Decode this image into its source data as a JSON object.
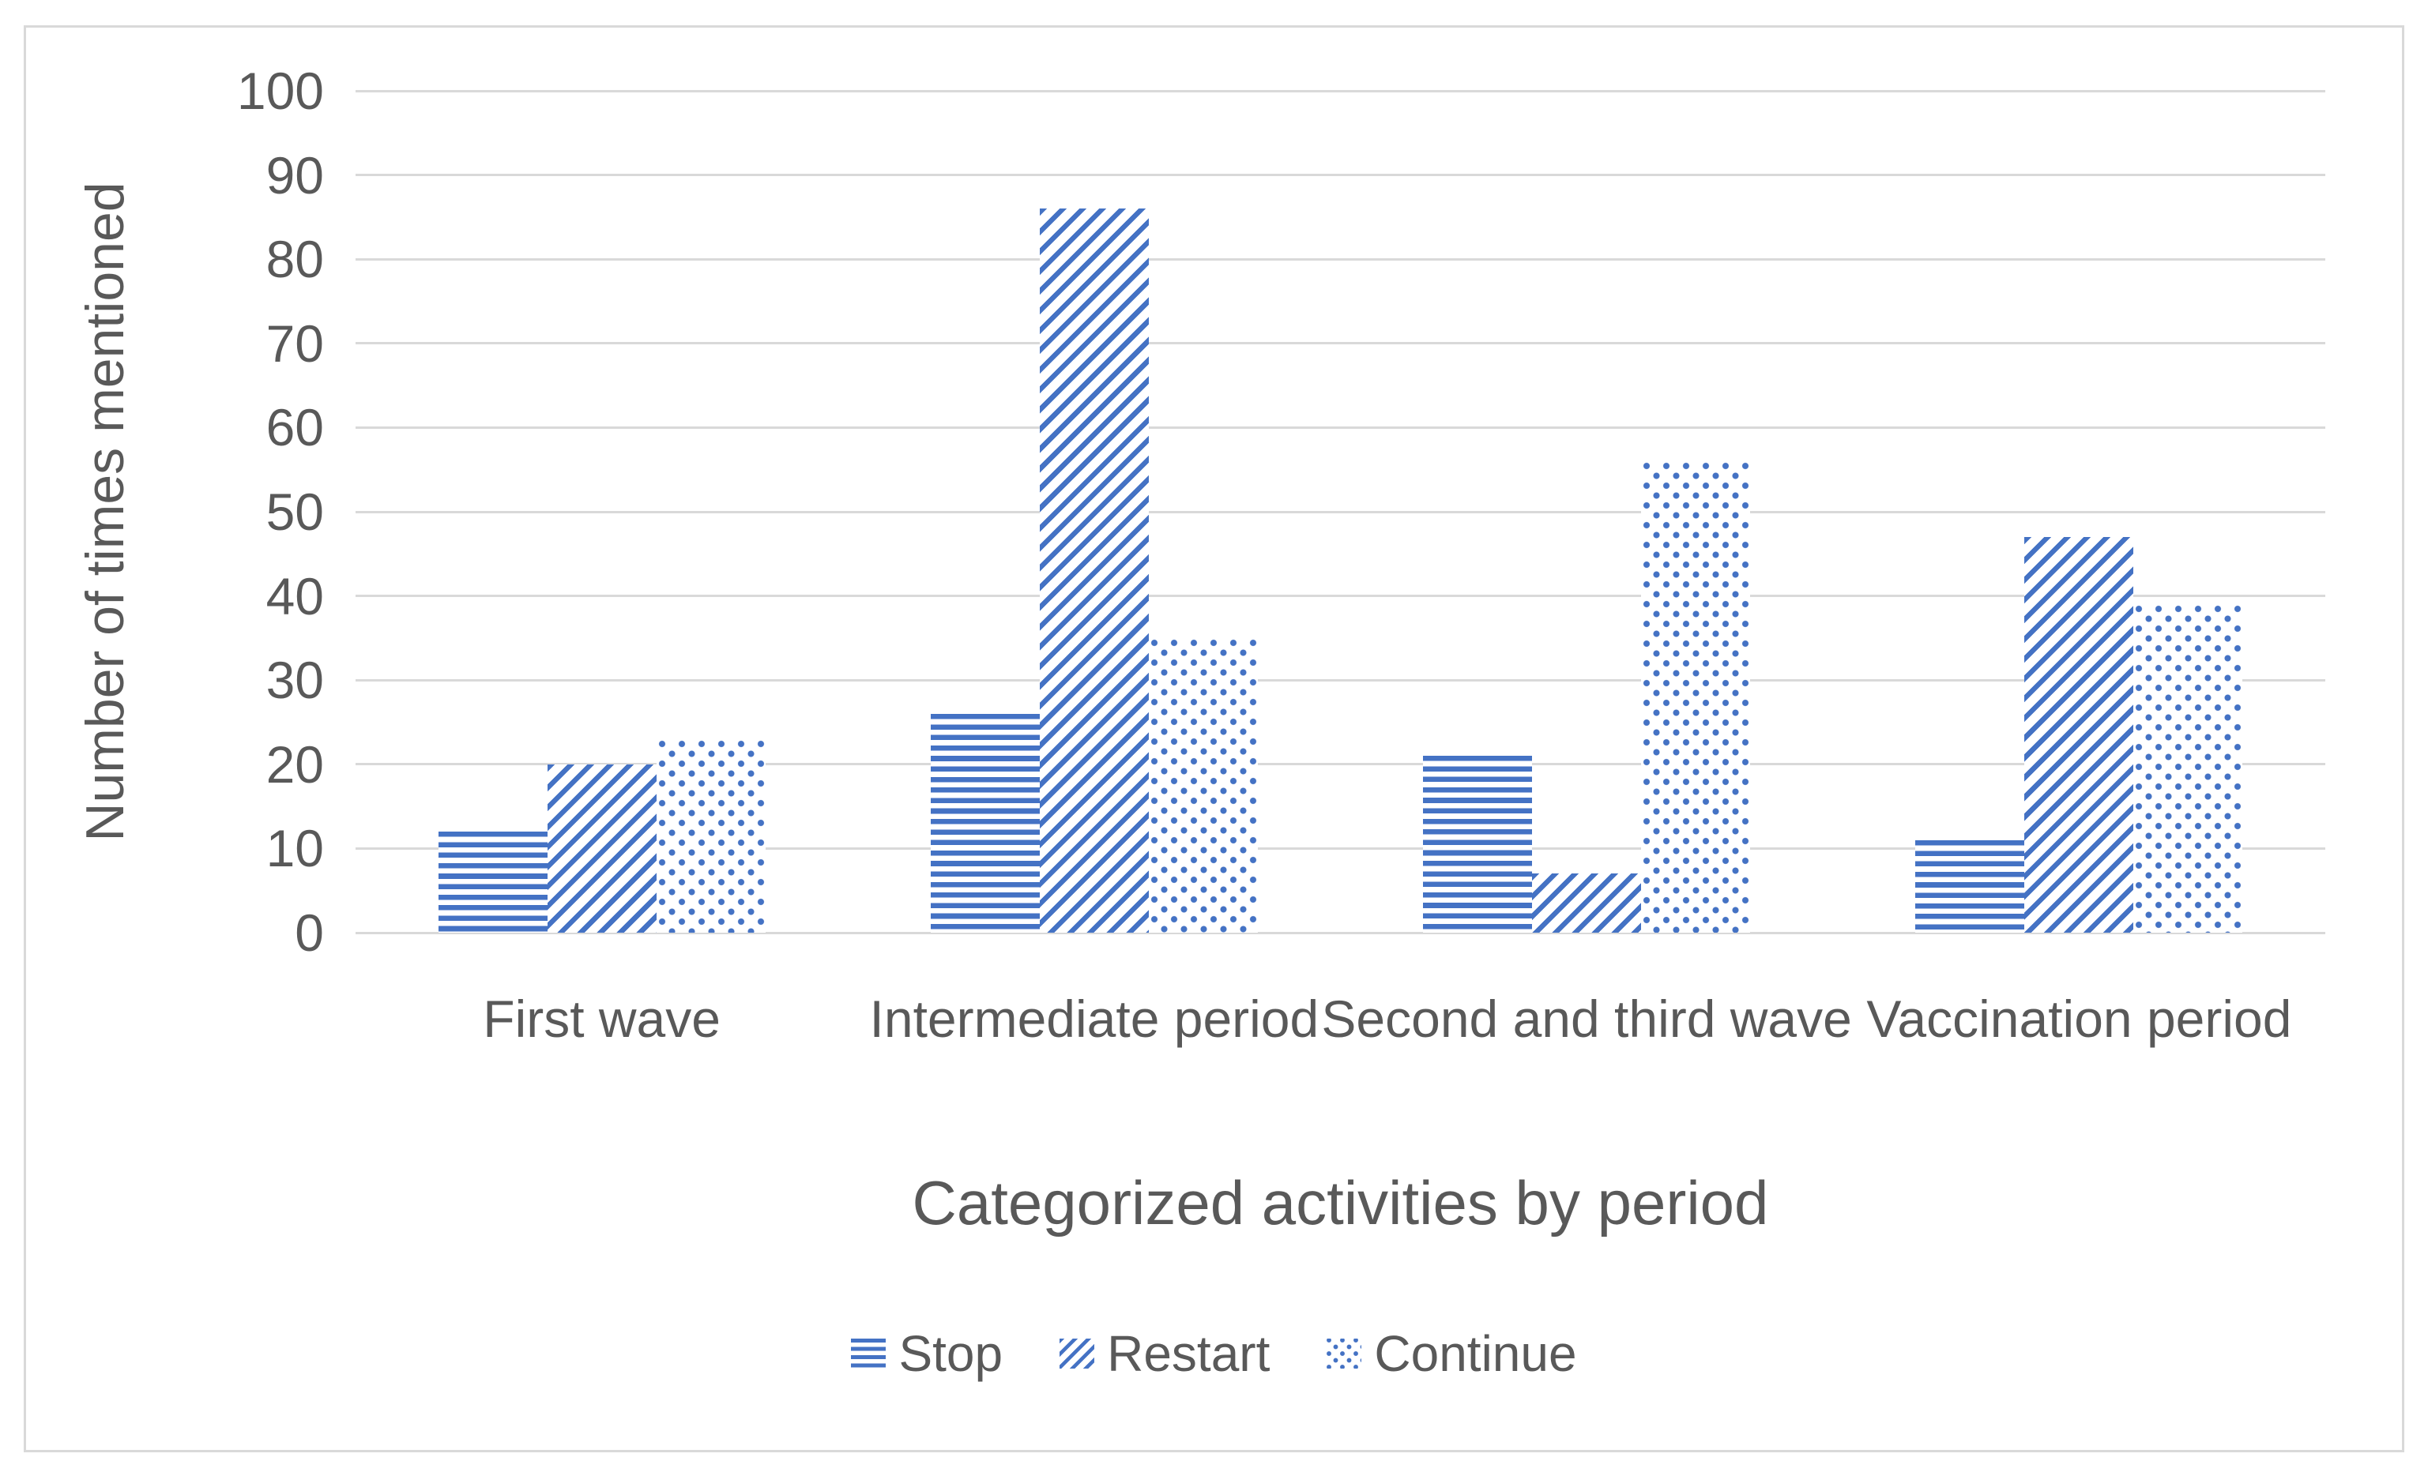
{
  "chart_data": {
    "type": "bar",
    "categories": [
      "First wave",
      "Intermediate period",
      "Second and third wave",
      "Vaccination period"
    ],
    "series": [
      {
        "name": "Stop",
        "pattern": "horizontal-stripes",
        "values": [
          12,
          26,
          21,
          11
        ]
      },
      {
        "name": "Restart",
        "pattern": "diagonal-stripes",
        "values": [
          20,
          86,
          7,
          47
        ]
      },
      {
        "name": "Continue",
        "pattern": "dots",
        "values": [
          23,
          35,
          56,
          39
        ]
      }
    ],
    "xlabel": "Categorized activities by period",
    "ylabel": "Number of times mentioned",
    "ylim": [
      0,
      100
    ],
    "y_ticks": [
      100,
      90,
      80,
      70,
      60,
      50,
      40,
      30,
      20,
      10,
      0
    ],
    "grid": "horizontal-only",
    "legend_position": "bottom-center",
    "bar_color": "#4472C4",
    "gridline_color": "#D9D9D9",
    "text_color": "#595959"
  },
  "legend": {
    "items": [
      {
        "label": "Stop"
      },
      {
        "label": "Restart"
      },
      {
        "label": "Continue"
      }
    ]
  }
}
